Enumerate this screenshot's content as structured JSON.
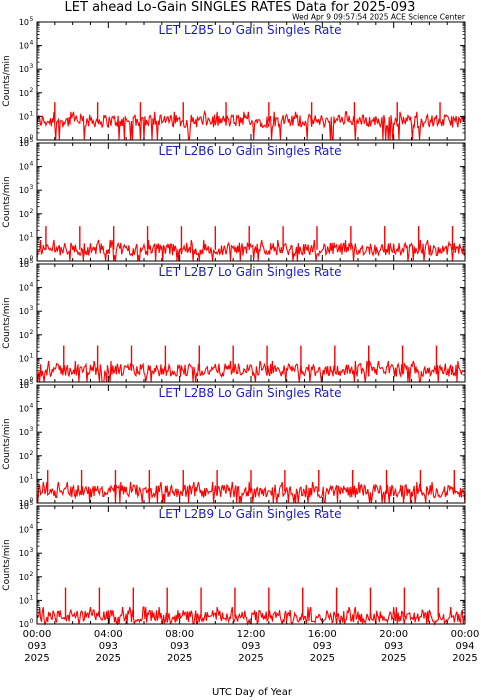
{
  "header": {
    "title": "LET ahead Lo-Gain SINGLES RATES Data for 2025-093",
    "timestamp": "Wed Apr  9 09:57:54 2025 ACE Science Center"
  },
  "colors": {
    "trace": "#ff0000",
    "panel_title": "#1a1acc",
    "axis": "#000000"
  },
  "chart_data": [
    {
      "type": "line",
      "title": "LET L2B5 Lo Gain Singles Rate",
      "ylabel": "Counts/min",
      "yscale": "log",
      "ylim": [
        1,
        100000
      ],
      "x_range_hours": [
        0,
        24
      ],
      "baseline": 6,
      "spike_height": 40,
      "spike_times_hours": [
        1.0,
        3.4,
        5.8,
        8.2,
        10.6,
        13.0,
        15.4,
        17.8,
        20.2,
        22.6
      ]
    },
    {
      "type": "line",
      "title": "LET L2B6 Lo Gain Singles Rate",
      "ylabel": "Counts/min",
      "yscale": "log",
      "ylim": [
        1,
        100000
      ],
      "x_range_hours": [
        0,
        24
      ],
      "baseline": 3,
      "spike_height": 30,
      "spike_times_hours": [
        0.5,
        2.4,
        4.3,
        6.2,
        8.1,
        10.0,
        11.9,
        13.8,
        15.7,
        17.6,
        19.5,
        21.4,
        23.3
      ]
    },
    {
      "type": "line",
      "title": "LET L2B7 Lo Gain Singles Rate",
      "ylabel": "Counts/min",
      "yscale": "log",
      "ylim": [
        1,
        100000
      ],
      "x_range_hours": [
        0,
        24
      ],
      "baseline": 3,
      "spike_height": 35,
      "spike_times_hours": [
        1.5,
        3.4,
        5.3,
        7.2,
        9.1,
        11.0,
        12.9,
        14.8,
        16.7,
        18.6,
        20.5,
        22.4
      ]
    },
    {
      "type": "line",
      "title": "LET L2B8 Lo Gain Singles Rate",
      "ylabel": "Counts/min",
      "yscale": "log",
      "ylim": [
        1,
        100000
      ],
      "x_range_hours": [
        0,
        24
      ],
      "baseline": 3,
      "spike_height": 25,
      "spike_times_hours": [
        0.6,
        2.5,
        4.4,
        6.3,
        8.2,
        10.1,
        12.0,
        13.9,
        15.8,
        17.7,
        19.6,
        21.5,
        23.4
      ]
    },
    {
      "type": "line",
      "title": "LET L2B9 Lo Gain Singles Rate",
      "ylabel": "Counts/min",
      "yscale": "log",
      "ylim": [
        1,
        100000
      ],
      "x_range_hours": [
        0,
        24
      ],
      "baseline": 2,
      "spike_height": 35,
      "spike_times_hours": [
        1.6,
        3.5,
        5.4,
        7.3,
        9.2,
        11.1,
        13.0,
        14.9,
        16.8,
        18.7,
        20.6,
        22.5
      ]
    }
  ],
  "yticks": [
    {
      "base": "10",
      "exp": "0"
    },
    {
      "base": "10",
      "exp": "1"
    },
    {
      "base": "10",
      "exp": "2"
    },
    {
      "base": "10",
      "exp": "3"
    },
    {
      "base": "10",
      "exp": "4"
    },
    {
      "base": "10",
      "exp": "5"
    }
  ],
  "xaxis": {
    "label": "UTC Day of Year",
    "ticks": [
      {
        "hour": 0,
        "time": "00:00",
        "doy": "093",
        "year": "2025"
      },
      {
        "hour": 4,
        "time": "04:00",
        "doy": "093",
        "year": "2025"
      },
      {
        "hour": 8,
        "time": "08:00",
        "doy": "093",
        "year": "2025"
      },
      {
        "hour": 12,
        "time": "12:00",
        "doy": "093",
        "year": "2025"
      },
      {
        "hour": 16,
        "time": "16:00",
        "doy": "093",
        "year": "2025"
      },
      {
        "hour": 20,
        "time": "20:00",
        "doy": "093",
        "year": "2025"
      },
      {
        "hour": 24,
        "time": "00:00",
        "doy": "094",
        "year": "2025"
      }
    ]
  }
}
